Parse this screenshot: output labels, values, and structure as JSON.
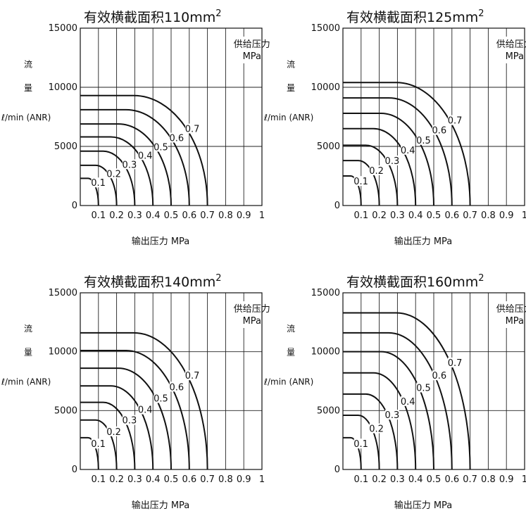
{
  "chart_data": [
    {
      "type": "line",
      "title": "有效横截面积110mm",
      "title_sup": "2",
      "xlabel": "输出压力  MPa",
      "ylabel_lines": [
        "流",
        "量",
        "ℓ/min (ANR)"
      ],
      "legend_lines": [
        "供给压力",
        "MPa"
      ],
      "xlim": [
        0,
        1
      ],
      "ylim": [
        0,
        15000
      ],
      "x_ticks": [
        "0.1",
        "0.2",
        "0.3",
        "0.4",
        "0.5",
        "0.6",
        "0.7",
        "0.8",
        "0.9",
        "1"
      ],
      "y_ticks": [
        "0",
        "5000",
        "10000",
        "15000"
      ],
      "series": [
        {
          "name": "0.1",
          "supply": 0.1,
          "max_flow": 2300
        },
        {
          "name": "0.2",
          "supply": 0.2,
          "max_flow": 3400
        },
        {
          "name": "0.3",
          "supply": 0.3,
          "max_flow": 4600
        },
        {
          "name": "0.4",
          "supply": 0.4,
          "max_flow": 5800
        },
        {
          "name": "0.5",
          "supply": 0.5,
          "max_flow": 6900
        },
        {
          "name": "0.6",
          "supply": 0.6,
          "max_flow": 8100
        },
        {
          "name": "0.7",
          "supply": 0.7,
          "max_flow": 9300
        }
      ]
    },
    {
      "type": "line",
      "title": "有效横截面积125mm",
      "title_sup": "2",
      "xlabel": "输出压力  MPa",
      "ylabel_lines": [
        "流",
        "量",
        "ℓ/min (ANR)"
      ],
      "legend_lines": [
        "供给压力",
        "MPa"
      ],
      "xlim": [
        0,
        1
      ],
      "ylim": [
        0,
        15000
      ],
      "x_ticks": [
        "0.1",
        "0.2",
        "0.3",
        "0.4",
        "0.5",
        "0.6",
        "0.7",
        "0.8",
        "0.9",
        "1"
      ],
      "y_ticks": [
        "0",
        "5000",
        "10000",
        "15000"
      ],
      "series": [
        {
          "name": "0.1",
          "supply": 0.1,
          "max_flow": 2500
        },
        {
          "name": "0.2",
          "supply": 0.2,
          "max_flow": 3800
        },
        {
          "name": "0.3",
          "supply": 0.3,
          "max_flow": 5100
        },
        {
          "name": "0.4",
          "supply": 0.4,
          "max_flow": 6500
        },
        {
          "name": "0.5",
          "supply": 0.5,
          "max_flow": 7800
        },
        {
          "name": "0.6",
          "supply": 0.6,
          "max_flow": 9100
        },
        {
          "name": "0.7",
          "supply": 0.7,
          "max_flow": 10400
        }
      ]
    },
    {
      "type": "line",
      "title": "有效横截面积140mm",
      "title_sup": "2",
      "xlabel": "输出压力  MPa",
      "ylabel_lines": [
        "流",
        "量",
        "ℓ/min (ANR)"
      ],
      "legend_lines": [
        "供给压力",
        "MPa"
      ],
      "xlim": [
        0,
        1
      ],
      "ylim": [
        0,
        15000
      ],
      "x_ticks": [
        "0.1",
        "0.2",
        "0.3",
        "0.4",
        "0.5",
        "0.6",
        "0.7",
        "0.8",
        "0.9",
        "1"
      ],
      "y_ticks": [
        "0",
        "5000",
        "10000",
        "15000"
      ],
      "series": [
        {
          "name": "0.1",
          "supply": 0.1,
          "max_flow": 2700
        },
        {
          "name": "0.2",
          "supply": 0.2,
          "max_flow": 4200
        },
        {
          "name": "0.3",
          "supply": 0.3,
          "max_flow": 5700
        },
        {
          "name": "0.4",
          "supply": 0.4,
          "max_flow": 7100
        },
        {
          "name": "0.5",
          "supply": 0.5,
          "max_flow": 8600
        },
        {
          "name": "0.6",
          "supply": 0.6,
          "max_flow": 10100
        },
        {
          "name": "0.7",
          "supply": 0.7,
          "max_flow": 11600
        }
      ]
    },
    {
      "type": "line",
      "title": "有效横截面积160mm",
      "title_sup": "2",
      "xlabel": "输出压力  MPa",
      "ylabel_lines": [
        "流",
        "量",
        "ℓ/min (ANR)"
      ],
      "legend_lines": [
        "供给压力",
        "MPa"
      ],
      "xlim": [
        0,
        1
      ],
      "ylim": [
        0,
        15000
      ],
      "x_ticks": [
        "0.1",
        "0.2",
        "0.3",
        "0.4",
        "0.5",
        "0.6",
        "0.7",
        "0.8",
        "0.9",
        "1"
      ],
      "y_ticks": [
        "0",
        "5000",
        "10000",
        "15000"
      ],
      "series": [
        {
          "name": "0.1",
          "supply": 0.1,
          "max_flow": 2700
        },
        {
          "name": "0.2",
          "supply": 0.2,
          "max_flow": 4600
        },
        {
          "name": "0.3",
          "supply": 0.3,
          "max_flow": 6400
        },
        {
          "name": "0.4",
          "supply": 0.4,
          "max_flow": 8200
        },
        {
          "name": "0.5",
          "supply": 0.5,
          "max_flow": 10000
        },
        {
          "name": "0.6",
          "supply": 0.6,
          "max_flow": 11600
        },
        {
          "name": "0.7",
          "supply": 0.7,
          "max_flow": 13300
        }
      ]
    }
  ]
}
